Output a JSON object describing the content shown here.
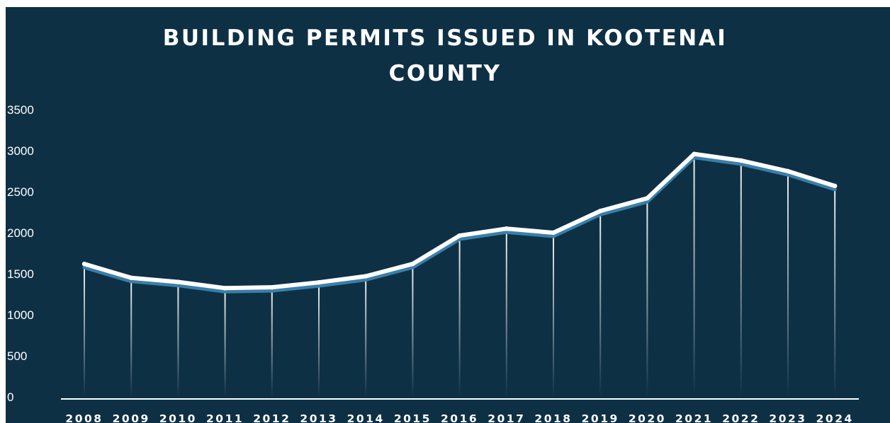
{
  "chart_data": {
    "type": "line",
    "title_lines": [
      "BUILDING PERMITS ISSUED IN KOOTENAI",
      "COUNTY"
    ],
    "categories": [
      "2008",
      "2009",
      "2010",
      "2011",
      "2012",
      "2013",
      "2014",
      "2015",
      "2016",
      "2017",
      "2018",
      "2019",
      "2020",
      "2021",
      "2022",
      "2023",
      "2024"
    ],
    "values": [
      1620,
      1450,
      1400,
      1325,
      1335,
      1395,
      1470,
      1620,
      1965,
      2050,
      2000,
      2265,
      2420,
      2960,
      2880,
      2750,
      2570
    ],
    "yticks": [
      "0",
      "500",
      "1000",
      "1500",
      "2000",
      "2500",
      "3000",
      "3500"
    ],
    "ylim": [
      0,
      3500
    ],
    "xlabel": "",
    "ylabel": "",
    "grid": false,
    "legend": "none",
    "colors": {
      "background": "#0e3045",
      "line": "#ffffff",
      "shadow": "#3a7fa8",
      "text": "#ffffff"
    }
  }
}
